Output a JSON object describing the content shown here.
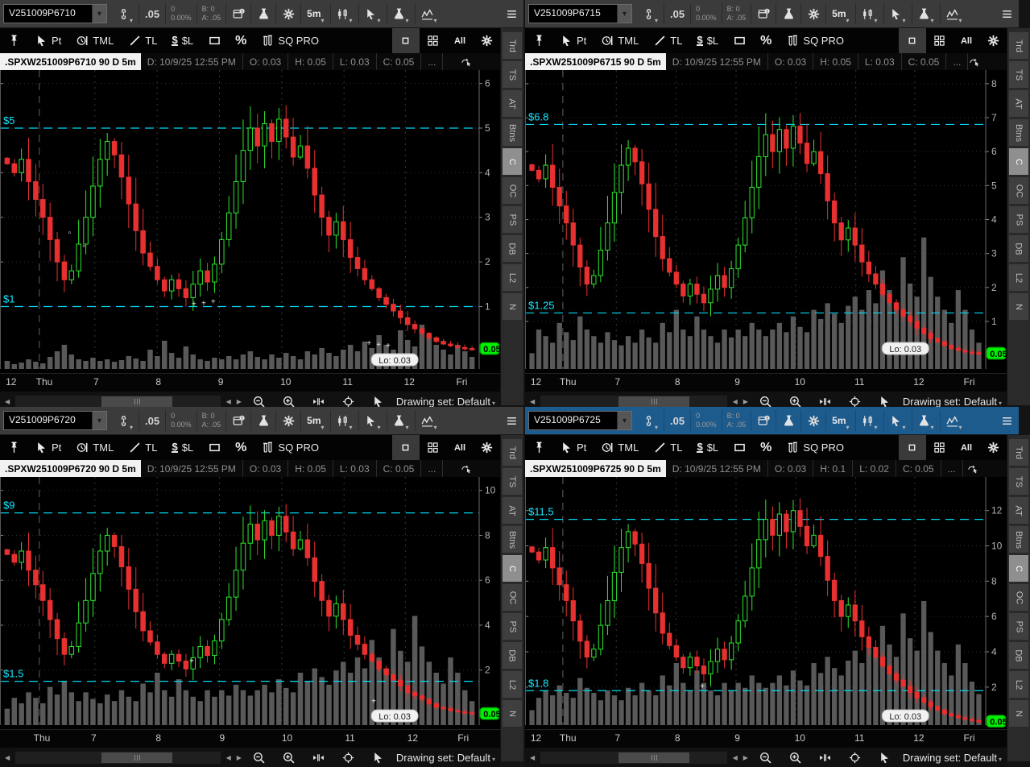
{
  "shared": {
    "toolbar": {
      "tick": ".05",
      "change": "0",
      "change_pct": "0.00%",
      "bid": "B: 0",
      "ask": "A: .05",
      "timeframe": "5m"
    },
    "drawing_toolbar": {
      "pt_label": "Pt",
      "tml_label": "TML",
      "tl_label": "TL",
      "dollar_sign": "$",
      "dollar_l_label": "$L",
      "percent_label": "%",
      "sqpro_label": "SQ PRO",
      "all_label": "All"
    },
    "sidebar": {
      "tabs": [
        "Trd",
        "TS",
        "AT",
        "Btns",
        "C",
        "OC",
        "PS",
        "DB",
        "L2",
        "N"
      ],
      "selected": "C"
    },
    "footer": {
      "drawing_set_label": "Drawing set: Default"
    },
    "colors": {
      "accent_cyan": "#17e7ff",
      "candle_up": "#2ee82e",
      "candle_down": "#e93030",
      "last_price_bg": "#00ee00",
      "active_toolbar": "#1d5b8d",
      "volume": "#636363"
    }
  },
  "panels": [
    {
      "symbol": "V251009P6710",
      "active": false,
      "status": {
        "title": ".SPXW251009P6710 90 D 5m",
        "datetime": "D: 10/9/25 12:55 PM",
        "open": "O: 0.03",
        "high": "H: 0.05",
        "low": "L: 0.03",
        "close": "C: 0.05",
        "more": "..."
      },
      "chart_data": {
        "type": "candlestick+volume",
        "title": ".SPXW251009P6710 90 D 5m",
        "ylim": [
          -0.4,
          6.3
        ],
        "y_ticks": [
          1,
          2,
          3,
          4,
          5,
          6
        ],
        "time_labels": [
          "12",
          "Thu",
          "7",
          "8",
          "9",
          "10",
          "11",
          "12",
          "Fri"
        ],
        "levels": [
          {
            "label": "$5",
            "price": 5
          },
          {
            "label": "$1",
            "price": 1
          }
        ],
        "last_price": "0.05",
        "lo_label": "Lo: 0.03",
        "closes": [
          4.2,
          4.0,
          4.3,
          3.8,
          3.4,
          3.0,
          2.5,
          2.0,
          1.6,
          1.8,
          2.4,
          3.0,
          3.7,
          4.3,
          4.7,
          4.4,
          3.9,
          3.3,
          2.7,
          2.2,
          1.9,
          1.6,
          1.35,
          1.6,
          1.4,
          1.2,
          1.5,
          1.8,
          1.55,
          1.95,
          2.5,
          3.1,
          3.8,
          4.5,
          5.0,
          4.6,
          5.1,
          4.7,
          5.2,
          4.8,
          4.35,
          4.6,
          4.1,
          3.5,
          3.0,
          2.6,
          2.9,
          2.5,
          2.1,
          1.85,
          1.6,
          1.4,
          1.2,
          1.05,
          0.9,
          0.75,
          0.6,
          0.5,
          0.4,
          0.3,
          0.22,
          0.16,
          0.12,
          0.08,
          0.06,
          0.05
        ],
        "volumes": [
          0.1,
          0.06,
          0.08,
          0.12,
          0.09,
          0.07,
          0.15,
          0.22,
          0.3,
          0.18,
          0.12,
          0.1,
          0.14,
          0.1,
          0.12,
          0.09,
          0.11,
          0.16,
          0.13,
          0.1,
          0.24,
          0.16,
          0.35,
          0.2,
          0.14,
          0.28,
          0.18,
          0.12,
          0.1,
          0.14,
          0.12,
          0.16,
          0.12,
          0.18,
          0.22,
          0.15,
          0.12,
          0.18,
          0.14,
          0.2,
          0.16,
          0.12,
          0.22,
          0.18,
          0.26,
          0.2,
          0.16,
          0.24,
          0.3,
          0.22,
          0.34,
          0.26,
          0.42,
          0.3,
          0.24,
          0.48,
          0.36,
          0.28,
          0.55,
          0.4,
          0.3,
          0.24,
          0.18,
          0.3,
          0.22,
          0.15
        ],
        "vol_frac": 0.27,
        "annotations": [
          {
            "x": 0.145,
            "price": 2.6,
            "t": "▫"
          },
          {
            "x": 0.175,
            "price": 2.3,
            "t": "▫"
          },
          {
            "x": 0.405,
            "price": 1.0,
            "t": "+"
          },
          {
            "x": 0.425,
            "price": 1.02,
            "t": "+"
          },
          {
            "x": 0.445,
            "price": 1.05,
            "t": "+"
          },
          {
            "x": 0.77,
            "price": 0.12,
            "t": "+"
          },
          {
            "x": 0.79,
            "price": 0.09,
            "t": "+"
          },
          {
            "x": 0.81,
            "price": 0.07,
            "t": "+"
          }
        ]
      }
    },
    {
      "symbol": "V251009P6715",
      "active": false,
      "status": {
        "title": ".SPXW251009P6715 90 D 5m",
        "datetime": "D: 10/9/25 12:55 PM",
        "open": "O: 0.03",
        "high": "H: 0.05",
        "low": "L: 0.03",
        "close": "C: 0.05",
        "more": "..."
      },
      "chart_data": {
        "type": "candlestick+volume",
        "title": ".SPXW251009P6715 90 D 5m",
        "ylim": [
          -0.4,
          8.4
        ],
        "y_ticks": [
          1,
          2,
          3,
          4,
          5,
          6,
          7,
          8
        ],
        "time_labels": [
          "12",
          "Thu",
          "7",
          "8",
          "9",
          "10",
          "11",
          "12",
          "Fri"
        ],
        "levels": [
          {
            "label": "$6.8",
            "price": 6.8
          },
          {
            "label": "$1.25",
            "price": 1.25
          }
        ],
        "last_price": "0.05",
        "lo_label": "Lo: 0.03",
        "closes": [
          5.45,
          5.2,
          5.6,
          4.95,
          4.4,
          3.9,
          3.25,
          2.6,
          2.1,
          2.35,
          3.1,
          3.9,
          4.8,
          5.6,
          6.1,
          5.7,
          5.05,
          4.3,
          3.5,
          2.85,
          2.45,
          2.1,
          1.75,
          2.1,
          1.8,
          1.55,
          1.95,
          2.35,
          2.0,
          2.55,
          3.25,
          4.05,
          4.95,
          5.85,
          6.5,
          6.0,
          6.65,
          6.1,
          6.75,
          6.25,
          5.65,
          6.0,
          5.35,
          4.55,
          3.9,
          3.4,
          3.75,
          3.25,
          2.75,
          2.4,
          2.1,
          1.8,
          1.55,
          1.35,
          1.15,
          1.0,
          0.8,
          0.65,
          0.5,
          0.4,
          0.3,
          0.2,
          0.15,
          0.1,
          0.08,
          0.05
        ],
        "volumes": [
          0.12,
          0.3,
          0.25,
          0.2,
          0.35,
          0.28,
          0.22,
          0.4,
          0.3,
          0.25,
          0.2,
          0.28,
          0.22,
          0.18,
          0.25,
          0.2,
          0.3,
          0.24,
          0.2,
          0.35,
          0.28,
          0.45,
          0.3,
          0.25,
          0.4,
          0.3,
          0.25,
          0.2,
          0.3,
          0.24,
          0.3,
          0.25,
          0.35,
          0.3,
          0.25,
          0.3,
          0.35,
          0.28,
          0.4,
          0.32,
          0.28,
          0.45,
          0.38,
          0.5,
          0.42,
          0.35,
          0.48,
          0.55,
          0.45,
          0.6,
          0.5,
          0.75,
          0.6,
          0.5,
          0.85,
          0.65,
          0.55,
          1.0,
          0.7,
          0.55,
          0.45,
          0.35,
          0.6,
          0.45,
          0.3,
          0.2
        ],
        "vol_frac": 0.44,
        "annotations": []
      }
    },
    {
      "symbol": "V251009P6720",
      "active": false,
      "status": {
        "title": ".SPXW251009P6720 90 D 5m",
        "datetime": "D: 10/9/25 12:55 PM",
        "open": "O: 0.03",
        "high": "H: 0.05",
        "low": "L: 0.03",
        "close": "C: 0.05",
        "more": "..."
      },
      "chart_data": {
        "type": "candlestick+volume",
        "title": ".SPXW251009P6720 90 D 5m",
        "ylim": [
          -0.45,
          10.6
        ],
        "y_ticks": [
          2,
          4,
          6,
          8,
          10
        ],
        "time_labels": [
          "Thu",
          "7",
          "8",
          "9",
          "10",
          "11",
          "12",
          "Fri"
        ],
        "levels": [
          {
            "label": "$9",
            "price": 9
          },
          {
            "label": "$1.5",
            "price": 1.5
          }
        ],
        "last_price": "0.05",
        "lo_label": "Lo: 0.03",
        "closes": [
          7.15,
          6.8,
          7.3,
          6.45,
          5.8,
          5.1,
          4.25,
          3.4,
          2.7,
          3.05,
          4.1,
          5.1,
          6.3,
          7.3,
          8.0,
          7.5,
          6.6,
          5.6,
          4.6,
          3.75,
          3.25,
          2.7,
          2.3,
          2.7,
          2.4,
          2.05,
          2.55,
          3.05,
          2.65,
          3.3,
          4.25,
          5.25,
          6.45,
          7.65,
          8.5,
          7.8,
          8.65,
          8.0,
          8.85,
          8.15,
          7.4,
          7.8,
          7.0,
          5.95,
          5.1,
          4.4,
          4.95,
          4.25,
          3.55,
          3.15,
          2.7,
          2.4,
          2.05,
          1.8,
          1.55,
          1.3,
          1.0,
          0.85,
          0.7,
          0.5,
          0.35,
          0.27,
          0.2,
          0.14,
          0.1,
          0.05
        ],
        "volumes": [
          0.15,
          0.25,
          0.2,
          0.3,
          0.25,
          0.2,
          0.35,
          0.28,
          0.4,
          0.3,
          0.22,
          0.3,
          0.24,
          0.2,
          0.28,
          0.22,
          0.32,
          0.26,
          0.22,
          0.38,
          0.3,
          0.48,
          0.32,
          0.26,
          0.42,
          0.32,
          0.26,
          0.22,
          0.32,
          0.26,
          0.32,
          0.27,
          0.37,
          0.32,
          0.27,
          0.32,
          0.37,
          0.3,
          0.42,
          0.34,
          0.3,
          0.48,
          0.4,
          0.52,
          0.44,
          0.37,
          0.5,
          0.58,
          0.48,
          0.62,
          0.52,
          0.78,
          0.62,
          0.52,
          0.88,
          0.68,
          0.58,
          1.0,
          0.72,
          0.58,
          0.48,
          0.38,
          0.62,
          0.48,
          0.32,
          0.22
        ],
        "vol_frac": 0.44,
        "annotations": [
          {
            "x": 0.4,
            "price": 2.3,
            "t": "+"
          },
          {
            "x": 0.78,
            "price": 0.5,
            "t": "+"
          }
        ]
      }
    },
    {
      "symbol": "V251009P6725",
      "active": true,
      "status": {
        "title": ".SPXW251009P6725 90 D 5m",
        "datetime": "D: 10/9/25 12:55 PM",
        "open": "O: 0.03",
        "high": "H: 0.1",
        "low": "L: 0.02",
        "close": "C: 0.05",
        "more": "..."
      },
      "chart_data": {
        "type": "candlestick+volume",
        "title": ".SPXW251009P6725 90 D 5m",
        "ylim": [
          -0.15,
          13.9
        ],
        "y_ticks": [
          2,
          4,
          6,
          8,
          10,
          12
        ],
        "time_labels": [
          "12",
          "Thu",
          "7",
          "8",
          "9",
          "10",
          "11",
          "12",
          "Fri"
        ],
        "levels": [
          {
            "label": "$11.5",
            "price": 11.5
          },
          {
            "label": "$1.8",
            "price": 1.8
          }
        ],
        "last_price": "0.05",
        "lo_label": "Lo: 0.03",
        "closes": [
          9.65,
          9.2,
          9.9,
          8.75,
          7.8,
          6.9,
          5.75,
          4.6,
          3.7,
          4.15,
          5.5,
          6.9,
          8.5,
          9.9,
          10.8,
          10.1,
          9.0,
          7.6,
          6.2,
          5.05,
          4.35,
          3.7,
          3.1,
          3.7,
          3.2,
          2.75,
          3.45,
          4.15,
          3.55,
          4.5,
          5.75,
          7.15,
          8.75,
          10.35,
          11.5,
          10.6,
          11.8,
          10.8,
          12.0,
          11.1,
          10.0,
          10.6,
          9.4,
          8.05,
          6.9,
          6.0,
          6.65,
          5.75,
          4.85,
          4.25,
          3.7,
          3.2,
          2.75,
          2.4,
          2.05,
          1.7,
          1.4,
          1.15,
          0.9,
          0.7,
          0.5,
          0.37,
          0.27,
          0.18,
          0.1,
          0.05
        ],
        "volumes": [
          0.12,
          0.22,
          0.28,
          0.24,
          0.32,
          0.26,
          0.22,
          0.38,
          0.3,
          0.26,
          0.2,
          0.28,
          0.24,
          0.2,
          0.3,
          0.24,
          0.34,
          0.28,
          0.24,
          0.4,
          0.32,
          0.5,
          0.34,
          0.28,
          0.44,
          0.34,
          0.28,
          0.24,
          0.34,
          0.28,
          0.34,
          0.3,
          0.4,
          0.34,
          0.3,
          0.34,
          0.4,
          0.32,
          0.44,
          0.36,
          0.32,
          0.5,
          0.42,
          0.55,
          0.46,
          0.4,
          0.52,
          0.6,
          0.5,
          0.65,
          0.55,
          0.8,
          0.65,
          0.55,
          0.9,
          0.7,
          0.6,
          1.0,
          0.75,
          0.6,
          0.5,
          0.4,
          0.65,
          0.5,
          0.35,
          0.25
        ],
        "vol_frac": 0.5,
        "annotations": [
          {
            "x": 0.385,
            "price": 1.9,
            "t": "+"
          }
        ]
      }
    }
  ]
}
